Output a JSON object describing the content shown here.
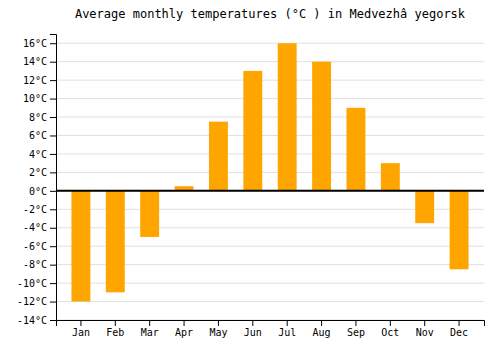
{
  "chart_data": {
    "type": "bar",
    "title": "Average monthly temperatures (°C ) in Medvezhâ yegorsk",
    "categories": [
      "Jan",
      "Feb",
      "Mar",
      "Apr",
      "May",
      "Jun",
      "Jul",
      "Aug",
      "Sep",
      "Oct",
      "Nov",
      "Dec"
    ],
    "values": [
      -12,
      -11,
      -5,
      0.5,
      7.5,
      13,
      16,
      14,
      9,
      3,
      -3.5,
      -8.5
    ],
    "color": "#FFA500",
    "ylim": [
      -14,
      17
    ],
    "yticks": [
      {
        "value": -14,
        "label": "-14°C"
      },
      {
        "value": -12,
        "label": "-12°C"
      },
      {
        "value": -10,
        "label": "-10°C"
      },
      {
        "value": -8,
        "label": "-8°C"
      },
      {
        "value": -6,
        "label": "-6°C"
      },
      {
        "value": -4,
        "label": "-4°C"
      },
      {
        "value": -2,
        "label": "-2°C"
      },
      {
        "value": 0,
        "label": "0°C"
      },
      {
        "value": 2,
        "label": "2°C"
      },
      {
        "value": 4,
        "label": "4°C"
      },
      {
        "value": 6,
        "label": "6°C"
      },
      {
        "value": 8,
        "label": "8°C"
      },
      {
        "value": 10,
        "label": "10°C"
      },
      {
        "value": 12,
        "label": "12°C"
      },
      {
        "value": 14,
        "label": "14°C"
      },
      {
        "value": 16,
        "label": "16°C"
      }
    ],
    "grid": true
  }
}
